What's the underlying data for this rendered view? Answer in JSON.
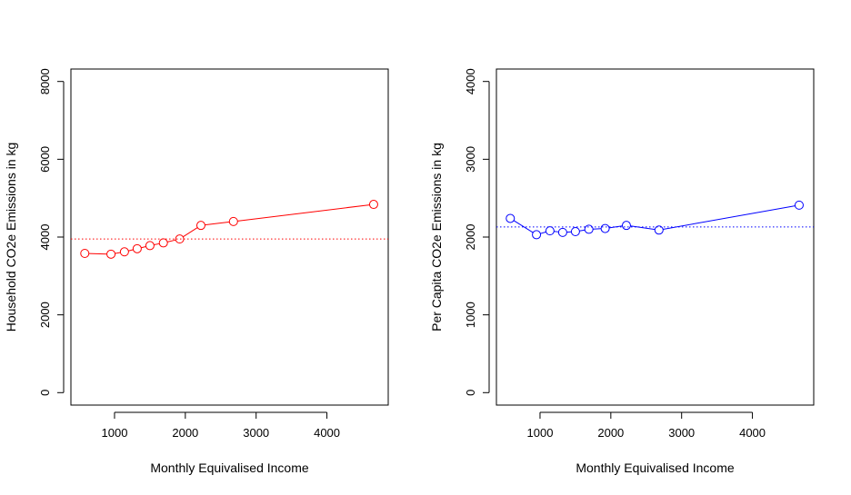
{
  "chart_data": [
    {
      "type": "line",
      "title": "",
      "xlabel": "Monthly Equivalised Income",
      "ylabel": "Household CO2e Emissions in kg",
      "xlim": [
        550,
        4700
      ],
      "ylim": [
        0,
        8000
      ],
      "xticks": [
        1000,
        2000,
        3000,
        4000
      ],
      "yticks": [
        0,
        2000,
        4000,
        6000,
        8000
      ],
      "grid": false,
      "color": "#ff0000",
      "series": [
        {
          "x": [
            580,
            950,
            1140,
            1320,
            1500,
            1690,
            1920,
            2220,
            2680,
            4660
          ],
          "y": [
            3580,
            3560,
            3620,
            3700,
            3780,
            3850,
            3950,
            4300,
            4400,
            4840
          ]
        }
      ],
      "reference_line": {
        "y": 3950,
        "style": "dotted"
      }
    },
    {
      "type": "line",
      "title": "",
      "xlabel": "Monthly Equivalised Income",
      "ylabel": "Per Capita CO2e Emissions in kg",
      "xlim": [
        550,
        4700
      ],
      "ylim": [
        0,
        4000
      ],
      "xticks": [
        1000,
        2000,
        3000,
        4000
      ],
      "yticks": [
        0,
        1000,
        2000,
        3000,
        4000
      ],
      "grid": false,
      "color": "#0000ff",
      "series": [
        {
          "x": [
            580,
            950,
            1140,
            1320,
            1500,
            1690,
            1920,
            2220,
            2680,
            4660
          ],
          "y": [
            2240,
            2030,
            2080,
            2060,
            2070,
            2100,
            2110,
            2150,
            2090,
            2410
          ]
        }
      ],
      "reference_line": {
        "y": 2130,
        "style": "dotted"
      }
    }
  ]
}
